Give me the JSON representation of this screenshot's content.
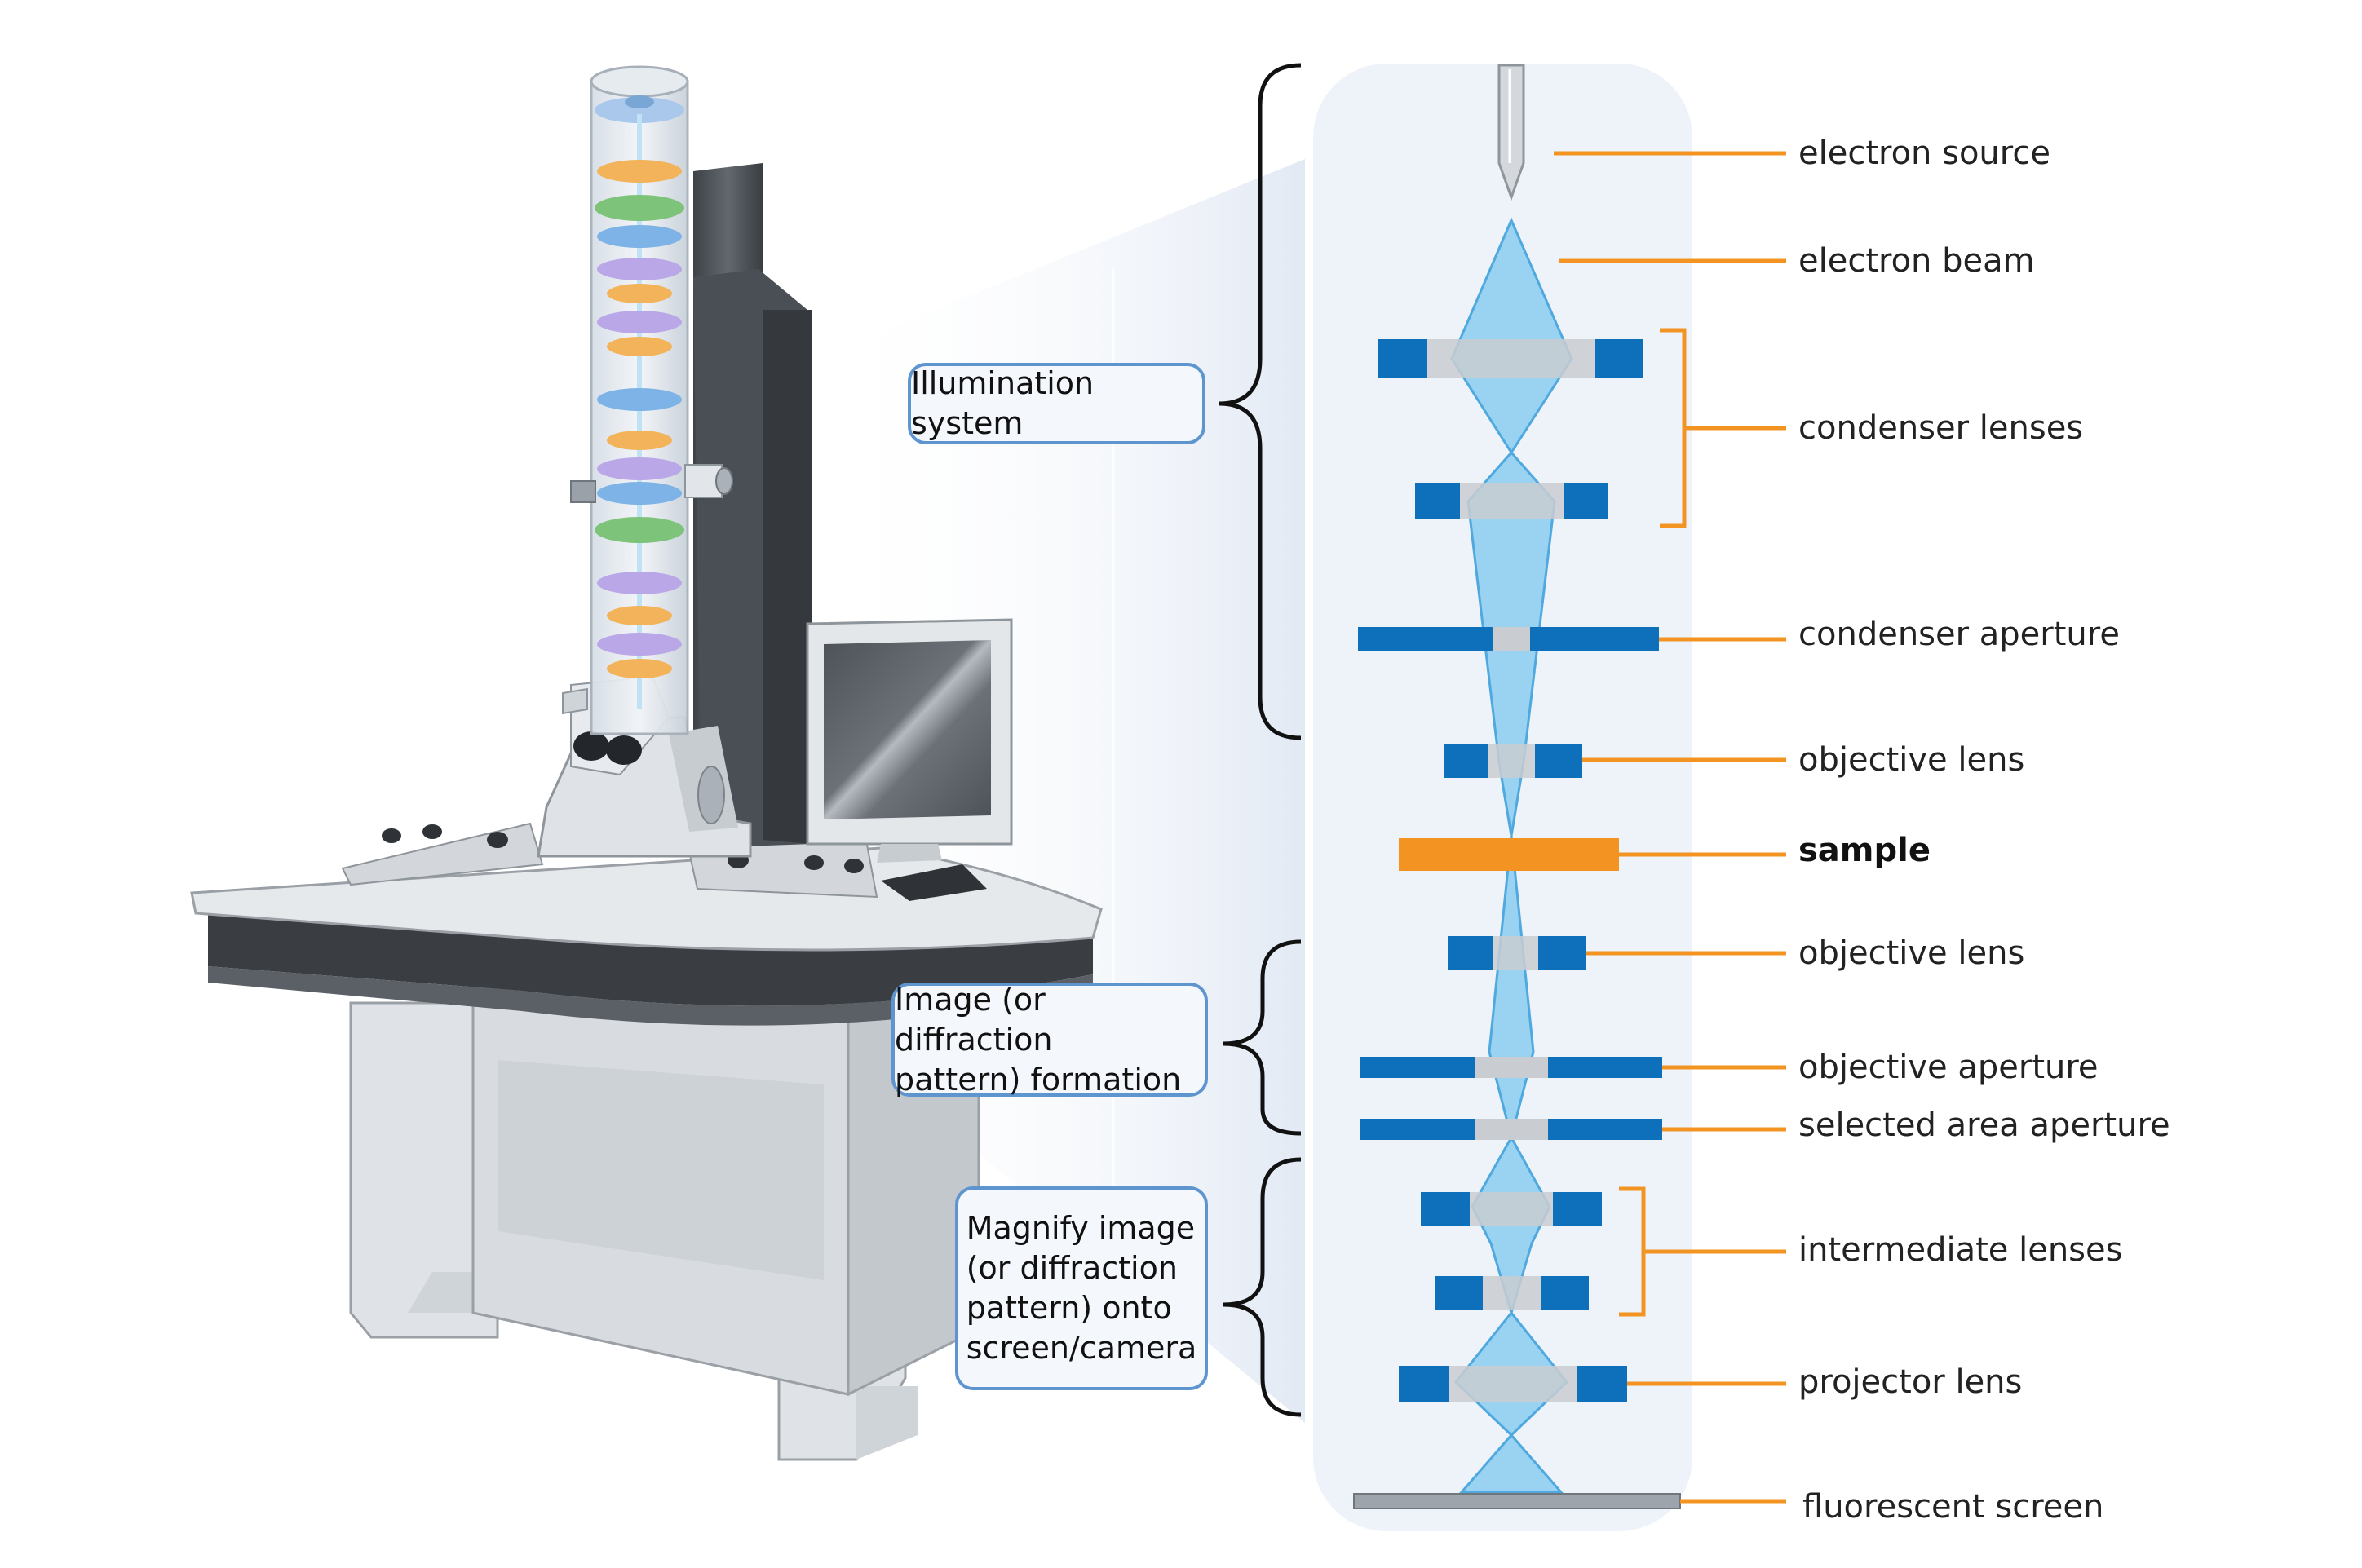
{
  "systems": {
    "illumination": "Illumination system",
    "image_formation": "Image (or diffraction\npattern) formation",
    "magnify": "Magnify image\n(or diffraction\npattern) onto\nscreen/camera"
  },
  "components": {
    "electron_source": "electron source",
    "electron_beam": "electron beam",
    "condenser_lenses": "condenser lenses",
    "condenser_aperture": "condenser aperture",
    "objective_lens_upper": "objective lens",
    "sample": "sample",
    "objective_lens_lower": "objective lens",
    "objective_aperture": "objective aperture",
    "selected_area_aperture": "selected area aperture",
    "intermediate_lenses": "intermediate lenses",
    "projector_lens": "projector lens",
    "fluorescent_screen": "fluorescent screen"
  },
  "colors": {
    "lens_blue": "#0e6fba",
    "beam_blue": "#7cc8ee",
    "sample_orange": "#f39422",
    "leader_orange": "#f39422",
    "panel_bg": "#eef3fa",
    "box_border": "#5f95cf"
  }
}
